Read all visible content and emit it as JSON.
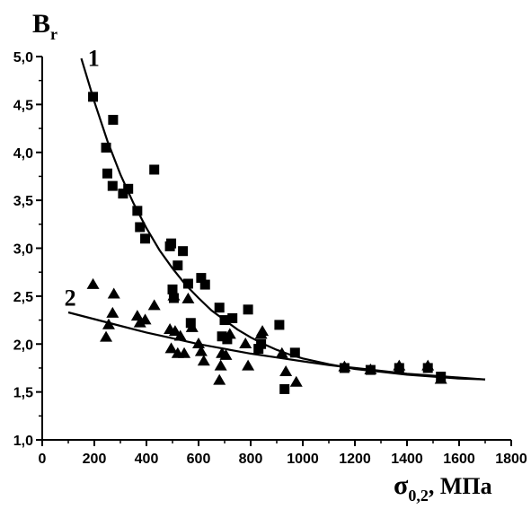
{
  "chart_data": {
    "type": "scatter",
    "ylabel": {
      "main": "B",
      "sub": "r"
    },
    "xlabel": {
      "main": "σ",
      "sub": "0,2",
      "unit": ", МПа"
    },
    "xlim": [
      0,
      1800
    ],
    "ylim": [
      1.0,
      5.0
    ],
    "x_ticks": [
      "0",
      "200",
      "400",
      "600",
      "800",
      "1000",
      "1200",
      "1400",
      "1600",
      "1800"
    ],
    "y_ticks": [
      "1,0",
      "1,5",
      "2,0",
      "2,5",
      "3,0",
      "3,5",
      "4,0",
      "4,5",
      "5,0"
    ],
    "grid": false,
    "series": [
      {
        "name": "1",
        "marker": "square",
        "points": [
          [
            195,
            4.58
          ],
          [
            245,
            4.05
          ],
          [
            250,
            3.78
          ],
          [
            270,
            3.65
          ],
          [
            272,
            4.34
          ],
          [
            310,
            3.57
          ],
          [
            330,
            3.62
          ],
          [
            365,
            3.39
          ],
          [
            375,
            3.22
          ],
          [
            395,
            3.1
          ],
          [
            430,
            3.82
          ],
          [
            490,
            3.02
          ],
          [
            495,
            3.05
          ],
          [
            500,
            2.57
          ],
          [
            505,
            2.48
          ],
          [
            520,
            2.82
          ],
          [
            540,
            2.97
          ],
          [
            560,
            2.63
          ],
          [
            570,
            2.22
          ],
          [
            610,
            2.69
          ],
          [
            625,
            2.62
          ],
          [
            680,
            2.38
          ],
          [
            690,
            2.08
          ],
          [
            700,
            2.25
          ],
          [
            710,
            2.05
          ],
          [
            730,
            2.27
          ],
          [
            790,
            2.36
          ],
          [
            830,
            1.95
          ],
          [
            840,
            2.0
          ],
          [
            910,
            2.2
          ],
          [
            930,
            1.53
          ],
          [
            970,
            1.91
          ],
          [
            1160,
            1.75
          ],
          [
            1260,
            1.73
          ],
          [
            1370,
            1.75
          ],
          [
            1480,
            1.75
          ],
          [
            1530,
            1.66
          ]
        ],
        "fit": [
          [
            150,
            4.98
          ],
          [
            200,
            4.53
          ],
          [
            250,
            4.12
          ],
          [
            300,
            3.77
          ],
          [
            350,
            3.47
          ],
          [
            400,
            3.21
          ],
          [
            450,
            2.98
          ],
          [
            500,
            2.79
          ],
          [
            550,
            2.62
          ],
          [
            600,
            2.48
          ],
          [
            650,
            2.35
          ],
          [
            700,
            2.25
          ],
          [
            750,
            2.15
          ],
          [
            800,
            2.07
          ],
          [
            850,
            2.0
          ],
          [
            900,
            1.94
          ],
          [
            950,
            1.89
          ],
          [
            1000,
            1.85
          ],
          [
            1100,
            1.79
          ],
          [
            1200,
            1.74
          ],
          [
            1300,
            1.71
          ],
          [
            1400,
            1.68
          ],
          [
            1500,
            1.66
          ],
          [
            1600,
            1.64
          ],
          [
            1700,
            1.63
          ]
        ]
      },
      {
        "name": "2",
        "marker": "triangle",
        "points": [
          [
            195,
            2.62
          ],
          [
            245,
            2.07
          ],
          [
            255,
            2.2
          ],
          [
            270,
            2.32
          ],
          [
            275,
            2.52
          ],
          [
            365,
            2.29
          ],
          [
            375,
            2.22
          ],
          [
            395,
            2.25
          ],
          [
            430,
            2.4
          ],
          [
            490,
            2.15
          ],
          [
            495,
            1.95
          ],
          [
            505,
            2.5
          ],
          [
            510,
            2.13
          ],
          [
            520,
            1.9
          ],
          [
            530,
            2.08
          ],
          [
            545,
            1.9
          ],
          [
            560,
            2.47
          ],
          [
            575,
            2.17
          ],
          [
            600,
            2.0
          ],
          [
            610,
            1.92
          ],
          [
            620,
            1.82
          ],
          [
            680,
            1.62
          ],
          [
            685,
            1.77
          ],
          [
            690,
            1.9
          ],
          [
            705,
            1.88
          ],
          [
            720,
            2.1
          ],
          [
            780,
            2.0
          ],
          [
            790,
            1.77
          ],
          [
            840,
            2.1
          ],
          [
            845,
            2.13
          ],
          [
            920,
            1.9
          ],
          [
            935,
            1.71
          ],
          [
            975,
            1.6
          ],
          [
            1160,
            1.76
          ],
          [
            1260,
            1.73
          ],
          [
            1370,
            1.77
          ],
          [
            1480,
            1.77
          ],
          [
            1530,
            1.63
          ]
        ],
        "fit": [
          [
            100,
            2.33
          ],
          [
            200,
            2.26
          ],
          [
            300,
            2.19
          ],
          [
            400,
            2.12
          ],
          [
            500,
            2.06
          ],
          [
            600,
            2.0
          ],
          [
            700,
            1.95
          ],
          [
            800,
            1.9
          ],
          [
            900,
            1.86
          ],
          [
            1000,
            1.82
          ],
          [
            1100,
            1.78
          ],
          [
            1200,
            1.75
          ],
          [
            1300,
            1.72
          ],
          [
            1400,
            1.69
          ],
          [
            1500,
            1.67
          ],
          [
            1600,
            1.65
          ],
          [
            1700,
            1.63
          ]
        ]
      }
    ],
    "curve_labels": [
      {
        "text": "1",
        "x": 175,
        "y": 4.9
      },
      {
        "text": "2",
        "x": 85,
        "y": 2.4
      }
    ]
  }
}
